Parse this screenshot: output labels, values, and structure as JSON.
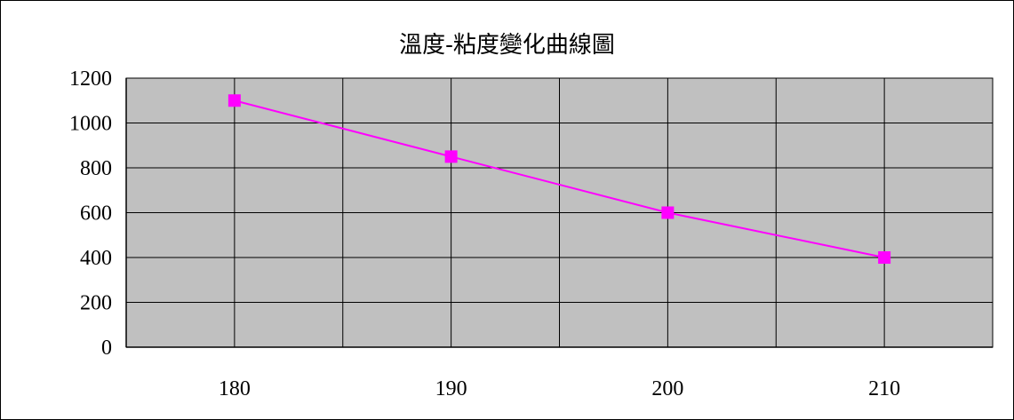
{
  "chart_data": {
    "type": "line",
    "title": "溫度-粘度變化曲線圖",
    "xlabel": "",
    "ylabel": "",
    "x": [
      180,
      190,
      200,
      210
    ],
    "series": [
      {
        "values": [
          1100,
          850,
          600,
          400
        ],
        "color": "#ff00ff",
        "marker": "square"
      }
    ],
    "ylim": [
      0,
      1200
    ],
    "yticks": [
      0,
      200,
      400,
      600,
      800,
      1000,
      1200
    ],
    "xlim": [
      175,
      215
    ],
    "xtick_labels": [
      "180",
      "190",
      "200",
      "210"
    ],
    "grid": true,
    "legend": "none",
    "plot_background": "#c0c0c0"
  }
}
